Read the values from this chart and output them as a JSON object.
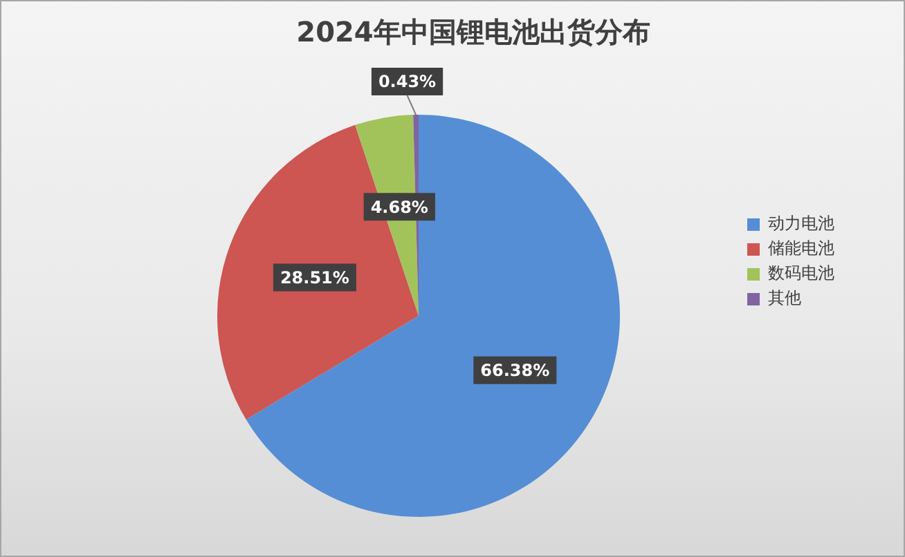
{
  "chart_data": {
    "type": "pie",
    "title": "2024年中国锂电池出货分布",
    "categories": [
      "动力电池",
      "储能电池",
      "数码电池",
      "其他"
    ],
    "values": [
      66.38,
      28.51,
      4.68,
      0.43
    ],
    "colors": [
      "#558ed5",
      "#cd5552",
      "#a2c35a",
      "#8064a2"
    ],
    "value_labels": [
      "66.38%",
      "28.51%",
      "4.68%",
      "0.43%"
    ],
    "legend": "right"
  }
}
